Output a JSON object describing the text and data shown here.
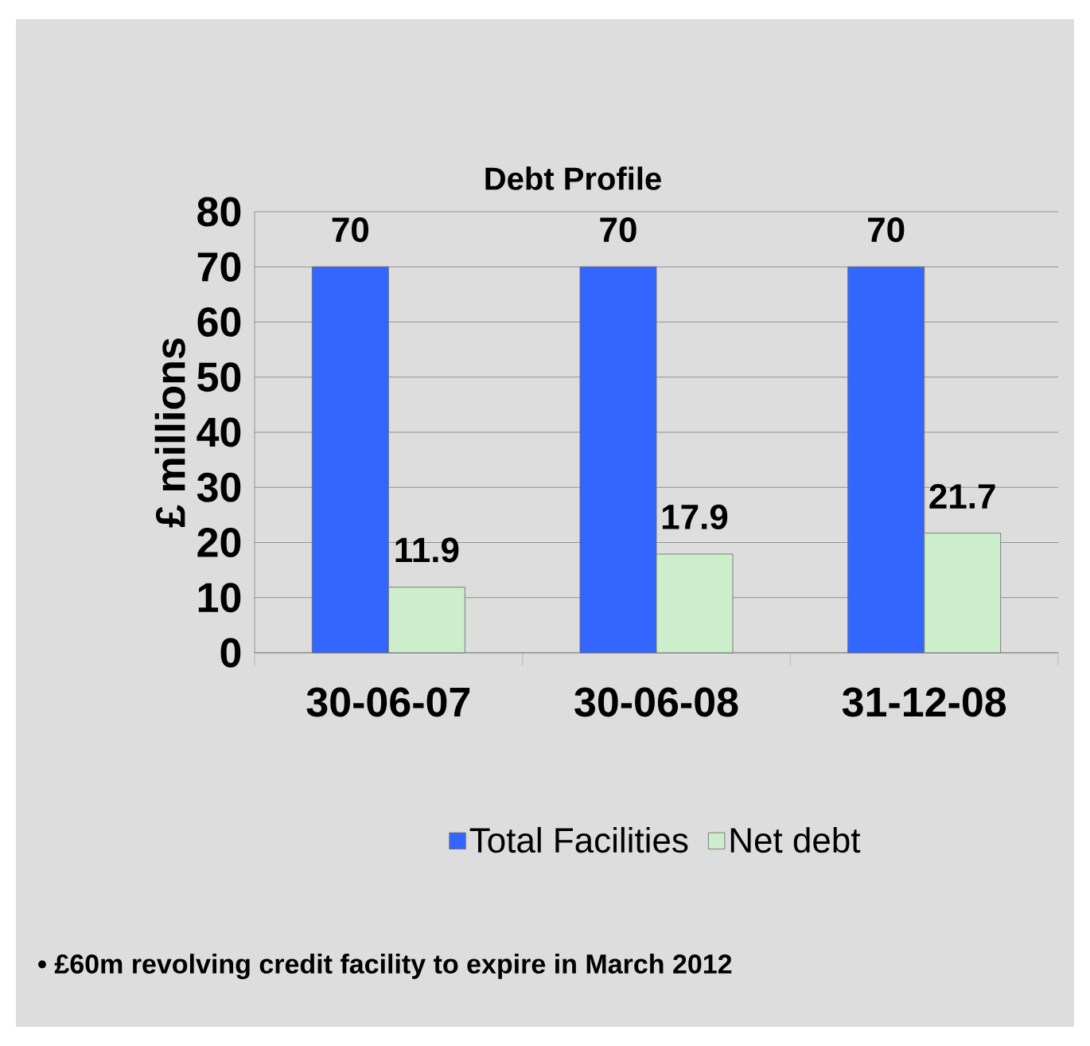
{
  "chart_data": {
    "type": "bar",
    "title": "Debt Profile",
    "ylabel": "£ millions",
    "categories": [
      "30-06-07",
      "30-06-08",
      "31-12-08"
    ],
    "series": [
      {
        "name": "Total Facilities",
        "color": "#3366ff",
        "values": [
          70,
          70,
          70
        ]
      },
      {
        "name": "Net debt",
        "color": "#cceecc",
        "values": [
          11.9,
          17.9,
          21.7
        ]
      }
    ],
    "ylim": [
      0,
      80
    ],
    "yticks": [
      0,
      10,
      20,
      30,
      40,
      50,
      60,
      70,
      80
    ],
    "grid": "y",
    "legend": "bottom",
    "data_labels": true,
    "annotations": [
      "• £60m revolving credit facility to expire in March 2012"
    ]
  }
}
